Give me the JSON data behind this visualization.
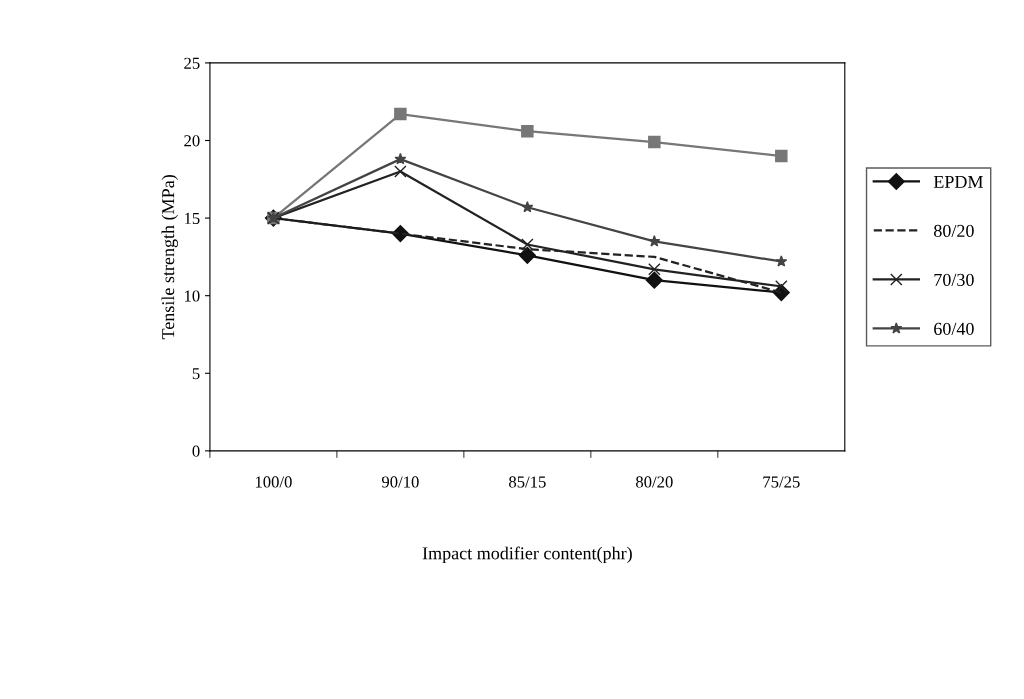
{
  "chart_data": {
    "type": "line",
    "xlabel": "Impact modifier content(phr)",
    "ylabel": "Tensile strength (MPa)",
    "categories": [
      "100/0",
      "90/10",
      "85/15",
      "80/20",
      "75/25"
    ],
    "ylim": [
      0,
      25
    ],
    "yticks": [
      0,
      5,
      10,
      15,
      20,
      25
    ],
    "grid": false,
    "legend": "right",
    "series": [
      {
        "name": "EPDM",
        "color": "#111111",
        "marker": "diamond",
        "line_style": "solid",
        "values": [
          15,
          14,
          12.6,
          11.0,
          10.2
        ]
      },
      {
        "color": "#777777",
        "marker": "square",
        "line_style": "solid",
        "values": [
          15,
          21.7,
          20.6,
          19.9,
          19.0
        ]
      },
      {
        "name": "80/20",
        "color": "#222222",
        "marker": "none",
        "line_style": "dashed",
        "values": [
          15,
          14.0,
          13.0,
          12.5,
          10.2
        ]
      },
      {
        "name": "70/30",
        "color": "#222222",
        "marker": "cross",
        "line_style": "solid",
        "values": [
          15,
          18.0,
          13.3,
          11.7,
          10.6
        ]
      },
      {
        "name": "60/40",
        "color": "#444444",
        "marker": "star",
        "line_style": "solid",
        "values": [
          15,
          18.8,
          15.7,
          13.5,
          12.2
        ]
      }
    ]
  }
}
